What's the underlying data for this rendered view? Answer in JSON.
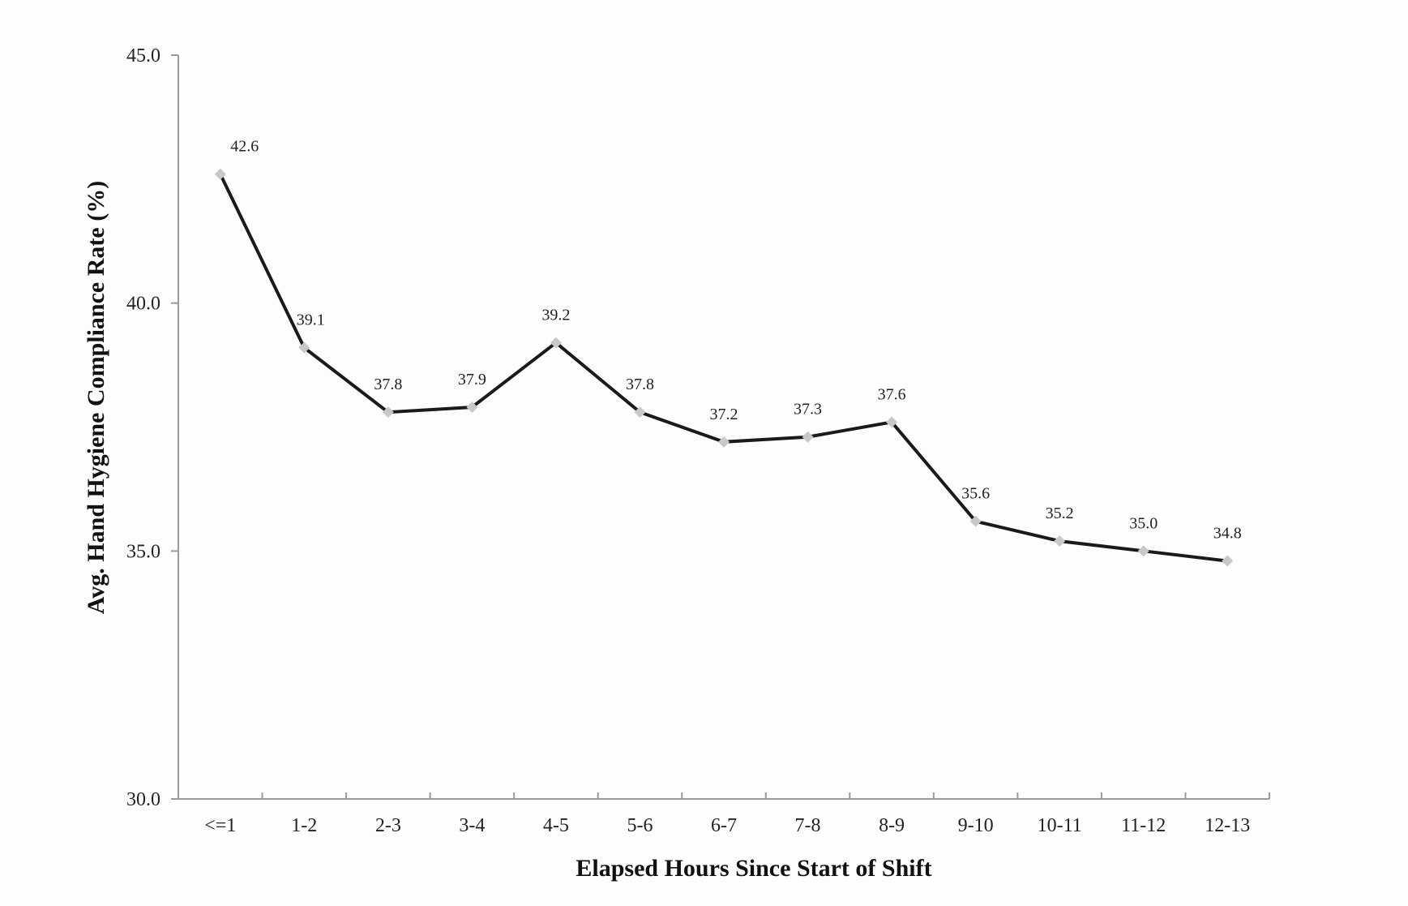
{
  "chart_data": {
    "type": "line",
    "title": "",
    "xlabel": "Elapsed Hours Since Start of Shift",
    "ylabel": "Avg. Hand Hygiene Compliance Rate (%)",
    "categories": [
      "<=1",
      "1-2",
      "2-3",
      "3-4",
      "4-5",
      "5-6",
      "6-7",
      "7-8",
      "8-9",
      "9-10",
      "10-11",
      "11-12",
      "12-13"
    ],
    "values": [
      42.6,
      39.1,
      37.8,
      37.9,
      39.2,
      37.8,
      37.2,
      37.3,
      37.6,
      35.6,
      35.2,
      35.0,
      34.8
    ],
    "value_labels": [
      "42.6",
      "39.1",
      "37.8",
      "37.9",
      "39.2",
      "37.8",
      "37.2",
      "37.3",
      "37.6",
      "35.6",
      "35.2",
      "35.0",
      "34.8"
    ],
    "ylim": [
      30,
      45
    ],
    "yticks": [
      "30.0",
      "35.0",
      "40.0",
      "45.0"
    ],
    "grid": false,
    "legend": "none",
    "colors": {
      "line": "#1a1a1a",
      "marker": "#c8c8c8",
      "axis": "#9a9a9a"
    }
  }
}
